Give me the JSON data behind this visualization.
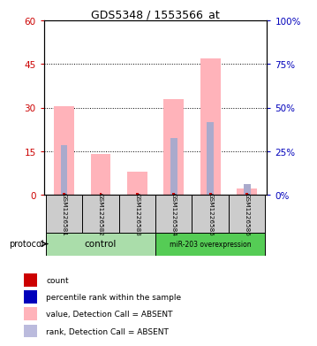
{
  "title": "GDS5348 / 1553566_at",
  "samples": [
    "GSM1226581",
    "GSM1226582",
    "GSM1226583",
    "GSM1226584",
    "GSM1226585",
    "GSM1226586"
  ],
  "pink_bar_heights": [
    30.5,
    14.0,
    8.0,
    33.0,
    47.0,
    2.0
  ],
  "blue_bar_heights": [
    17.0,
    0,
    0,
    19.5,
    25.0,
    3.5
  ],
  "red_dot_values": [
    0.5,
    0.5,
    0.5,
    0.5,
    0.5,
    0.5
  ],
  "pink_color": "#FFB3BA",
  "blue_color": "#AAAACC",
  "red_color": "#CC0000",
  "dark_blue_color": "#0000BB",
  "ylim_left": [
    0,
    60
  ],
  "ylim_right": [
    0,
    100
  ],
  "yticks_left": [
    0,
    15,
    30,
    45,
    60
  ],
  "yticks_right": [
    0,
    25,
    50,
    75,
    100
  ],
  "ytick_labels_left": [
    "0",
    "15",
    "30",
    "45",
    "60"
  ],
  "ytick_labels_right": [
    "0%",
    "25%",
    "50%",
    "75%",
    "100%"
  ],
  "control_samples": [
    0,
    1,
    2
  ],
  "overexpression_samples": [
    3,
    4,
    5
  ],
  "control_label": "control",
  "overexpression_label": "miR-203 overexpression",
  "protocol_label": "protocol",
  "legend_items": [
    {
      "label": "count",
      "color": "#CC0000"
    },
    {
      "label": "percentile rank within the sample",
      "color": "#0000BB"
    },
    {
      "label": "value, Detection Call = ABSENT",
      "color": "#FFB3BA"
    },
    {
      "label": "rank, Detection Call = ABSENT",
      "color": "#BBBBDD"
    }
  ],
  "bar_width": 0.55
}
